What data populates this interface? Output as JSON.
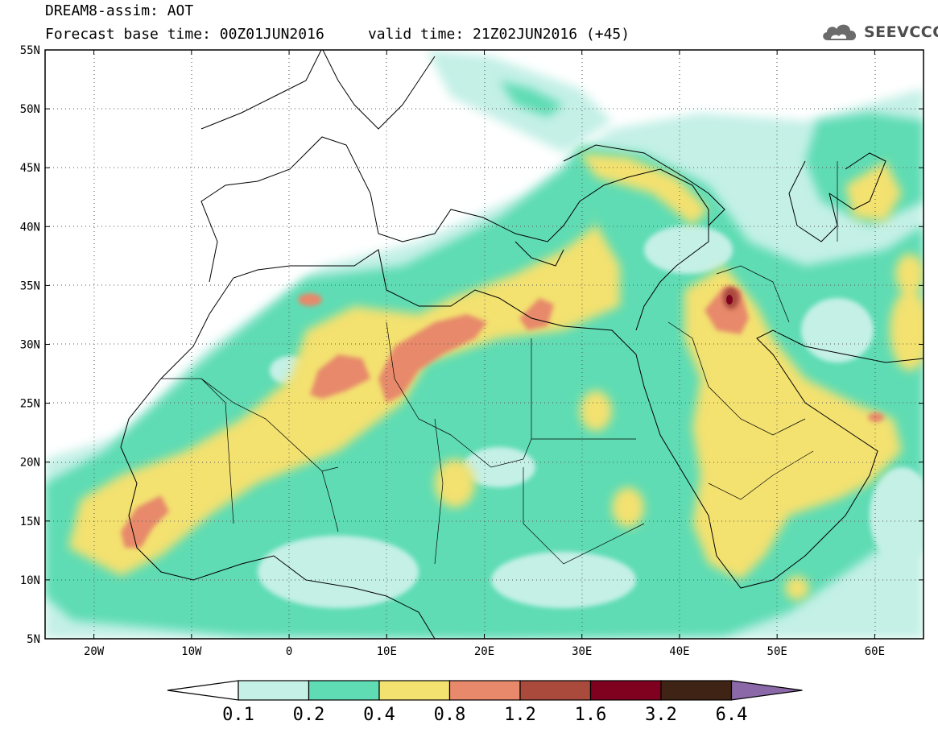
{
  "header": {
    "title_line1": "DREAM8-assim: AOT",
    "title_line2": "Forecast base time: 00Z01JUN2016     valid time: 21Z02JUN2016 (+45)",
    "logo_text": "SEEVCCC"
  },
  "map": {
    "lon_range": [
      -25,
      65
    ],
    "lat_range": [
      5,
      55
    ],
    "lat_ticks": [
      {
        "value": 55,
        "label": "55N"
      },
      {
        "value": 50,
        "label": "50N"
      },
      {
        "value": 45,
        "label": "45N"
      },
      {
        "value": 40,
        "label": "40N"
      },
      {
        "value": 35,
        "label": "35N"
      },
      {
        "value": 30,
        "label": "30N"
      },
      {
        "value": 25,
        "label": "25N"
      },
      {
        "value": 20,
        "label": "20N"
      },
      {
        "value": 15,
        "label": "15N"
      },
      {
        "value": 10,
        "label": "10N"
      },
      {
        "value": 5,
        "label": "5N"
      }
    ],
    "lon_ticks": [
      {
        "value": -20,
        "label": "20W"
      },
      {
        "value": -10,
        "label": "10W"
      },
      {
        "value": 0,
        "label": "0"
      },
      {
        "value": 10,
        "label": "10E"
      },
      {
        "value": 20,
        "label": "20E"
      },
      {
        "value": 30,
        "label": "30E"
      },
      {
        "value": 40,
        "label": "40E"
      },
      {
        "value": 50,
        "label": "50E"
      },
      {
        "value": 60,
        "label": "60E"
      }
    ],
    "grid": "dotted"
  },
  "colorbar": {
    "levels": [
      "0.1",
      "0.2",
      "0.4",
      "0.8",
      "1.2",
      "1.6",
      "3.2",
      "6.4"
    ],
    "colors": [
      "#c4f0e6",
      "#5fdcb4",
      "#f3e170",
      "#e7896a",
      "#a94a3c",
      "#800020",
      "#3f2416",
      "#8b68a8"
    ],
    "under_color": "#ffffff"
  },
  "colors": {
    "c1": "#c4f0e6",
    "c2": "#5fdcb4",
    "c3": "#f3e170",
    "c4": "#e7896a",
    "c5": "#a94a3c",
    "c6": "#800020"
  }
}
